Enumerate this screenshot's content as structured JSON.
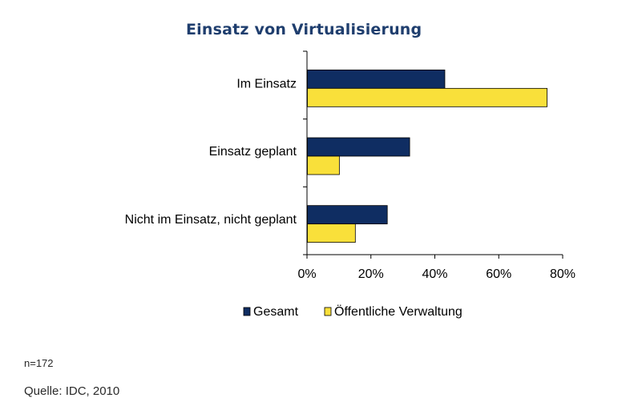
{
  "chart_data": {
    "type": "bar",
    "orientation": "horizontal",
    "title": "Einsatz von Virtualisierung",
    "categories": [
      "Im Einsatz",
      "Einsatz geplant",
      "Nicht im Einsatz, nicht geplant"
    ],
    "series": [
      {
        "name": "Gesamt",
        "color": "#0f2d62",
        "values": [
          43,
          32,
          25
        ]
      },
      {
        "name": "Öffentliche Verwaltung",
        "color": "#f9e03a",
        "values": [
          75,
          10,
          15
        ]
      }
    ],
    "x_ticks": [
      "0%",
      "20%",
      "40%",
      "60%",
      "80%"
    ],
    "xlim": [
      0,
      80
    ],
    "xlabel": "",
    "ylabel": "",
    "grid": false,
    "legend_position": "bottom"
  },
  "footer": {
    "sample_size": "n=172",
    "source": "Quelle: IDC, 2010"
  }
}
